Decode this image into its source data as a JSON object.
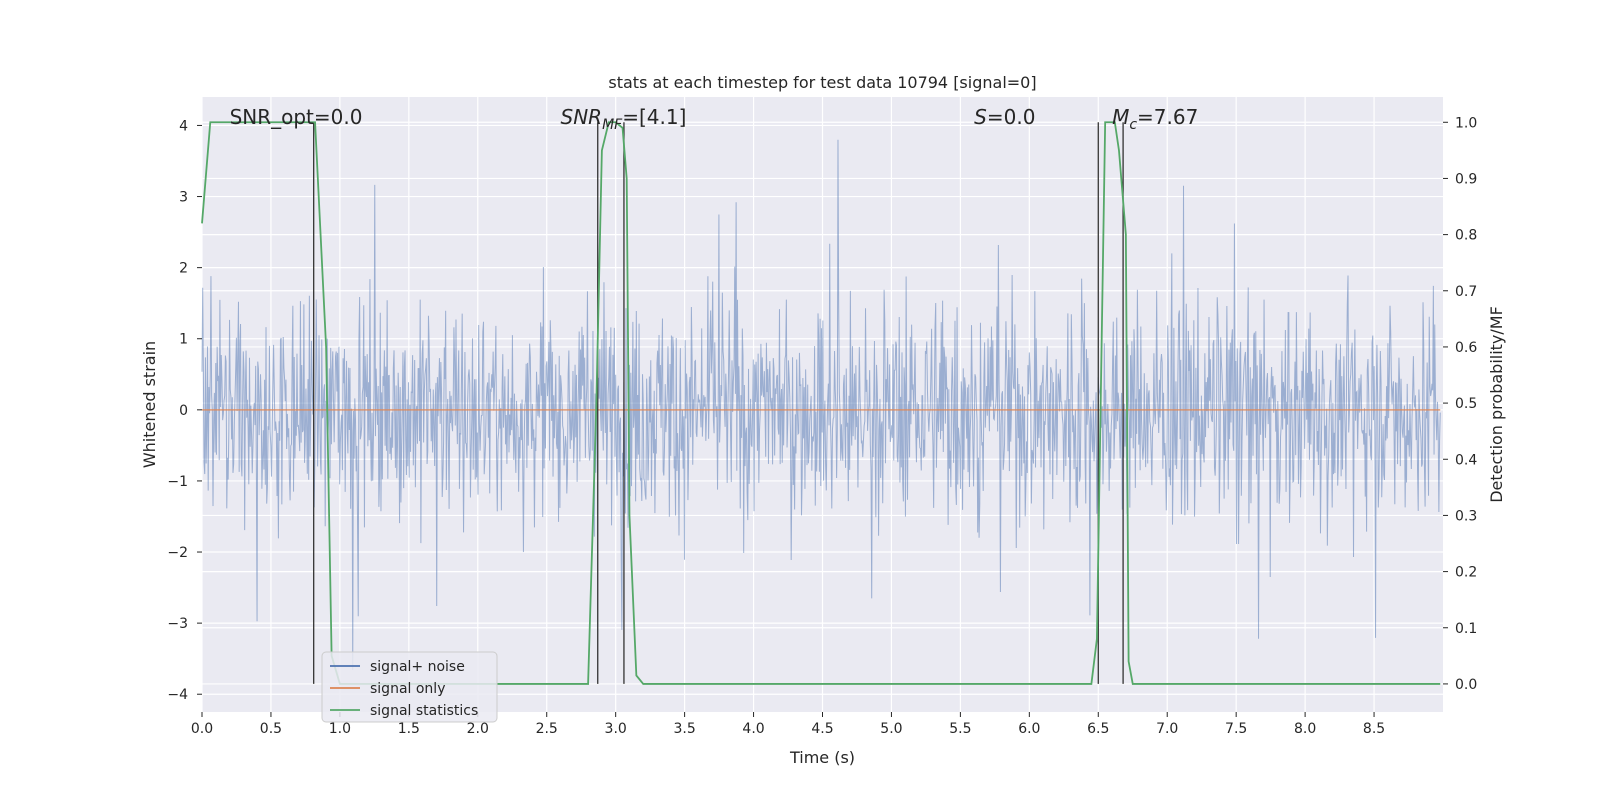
{
  "chart_data": {
    "type": "line",
    "title": "stats at each timestep for test data 10794 [signal=0]",
    "xlabel": "Time (s)",
    "ylabel": "Whitened strain",
    "ylabel_right": "Detection probability/MF",
    "xlim": [
      0.0,
      9.0
    ],
    "ylim": [
      -4.25,
      4.4
    ],
    "ylim_right": [
      -0.05,
      1.045
    ],
    "x_ticks": [
      "0.0",
      "0.5",
      "1.0",
      "1.5",
      "2.0",
      "2.5",
      "3.0",
      "3.5",
      "4.0",
      "4.5",
      "5.0",
      "5.5",
      "6.0",
      "6.5",
      "7.0",
      "7.5",
      "8.0",
      "8.5"
    ],
    "y_ticks": [
      "4",
      "3",
      "2",
      "1",
      "0",
      "−1",
      "−2",
      "−3",
      "−4"
    ],
    "y_ticks_right": [
      "1.0",
      "0.9",
      "0.8",
      "0.7",
      "0.6",
      "0.5",
      "0.4",
      "0.3",
      "0.2",
      "0.1",
      "0.0"
    ],
    "grid": true,
    "legend_position": "lower-left",
    "colors": {
      "background": "#EAEAF2",
      "grid": "#FFFFFF",
      "noise": "#4C72B0",
      "signal_only": "#DD8452",
      "statistics": "#55A868",
      "vlines": "#333333"
    },
    "annotations": [
      {
        "text": "SNR_opt=0.0",
        "x": 0.2
      },
      {
        "text": "SNR",
        "sub": "MF",
        "suffix": "=[4.1]",
        "x": 2.6
      },
      {
        "text": "S",
        "sub": "",
        "suffix": "=0.0",
        "x": 5.6
      },
      {
        "text": "M",
        "sub": "c",
        "suffix": "=7.67",
        "x": 6.6
      }
    ],
    "series": [
      {
        "name": "signal+ noise",
        "kind": "noise",
        "note": "dense whitened noise around 0, spikes typically within about -2.5 to 3.5",
        "amplitude_core": 1.6
      },
      {
        "name": "signal only",
        "kind": "flat",
        "values_constant": 0.0
      },
      {
        "name": "signal statistics",
        "kind": "probability",
        "axis": "right",
        "x": [
          0.0,
          0.06,
          0.12,
          0.8,
          0.82,
          0.9,
          0.94,
          1.0,
          2.8,
          2.86,
          2.9,
          2.95,
          3.0,
          3.05,
          3.08,
          3.1,
          3.15,
          3.2,
          3.7,
          6.45,
          6.49,
          6.55,
          6.6,
          6.62,
          6.65,
          6.7,
          6.72,
          6.75,
          8.98
        ],
        "values": [
          0.82,
          1.0,
          1.0,
          1.0,
          1.0,
          0.6,
          0.05,
          0.0,
          0.0,
          0.5,
          0.95,
          1.0,
          1.0,
          0.99,
          0.9,
          0.3,
          0.015,
          0.0,
          0.0,
          0.0,
          0.08,
          1.0,
          1.0,
          1.0,
          0.95,
          0.8,
          0.04,
          0.0,
          0.0
        ]
      }
    ],
    "vlines_x": [
      0.81,
      2.87,
      3.06,
      6.5,
      6.68
    ],
    "legend": [
      {
        "label": "signal+ noise",
        "color": "#4C72B0"
      },
      {
        "label": "signal only",
        "color": "#DD8452"
      },
      {
        "label": "signal statistics",
        "color": "#55A868"
      }
    ]
  }
}
